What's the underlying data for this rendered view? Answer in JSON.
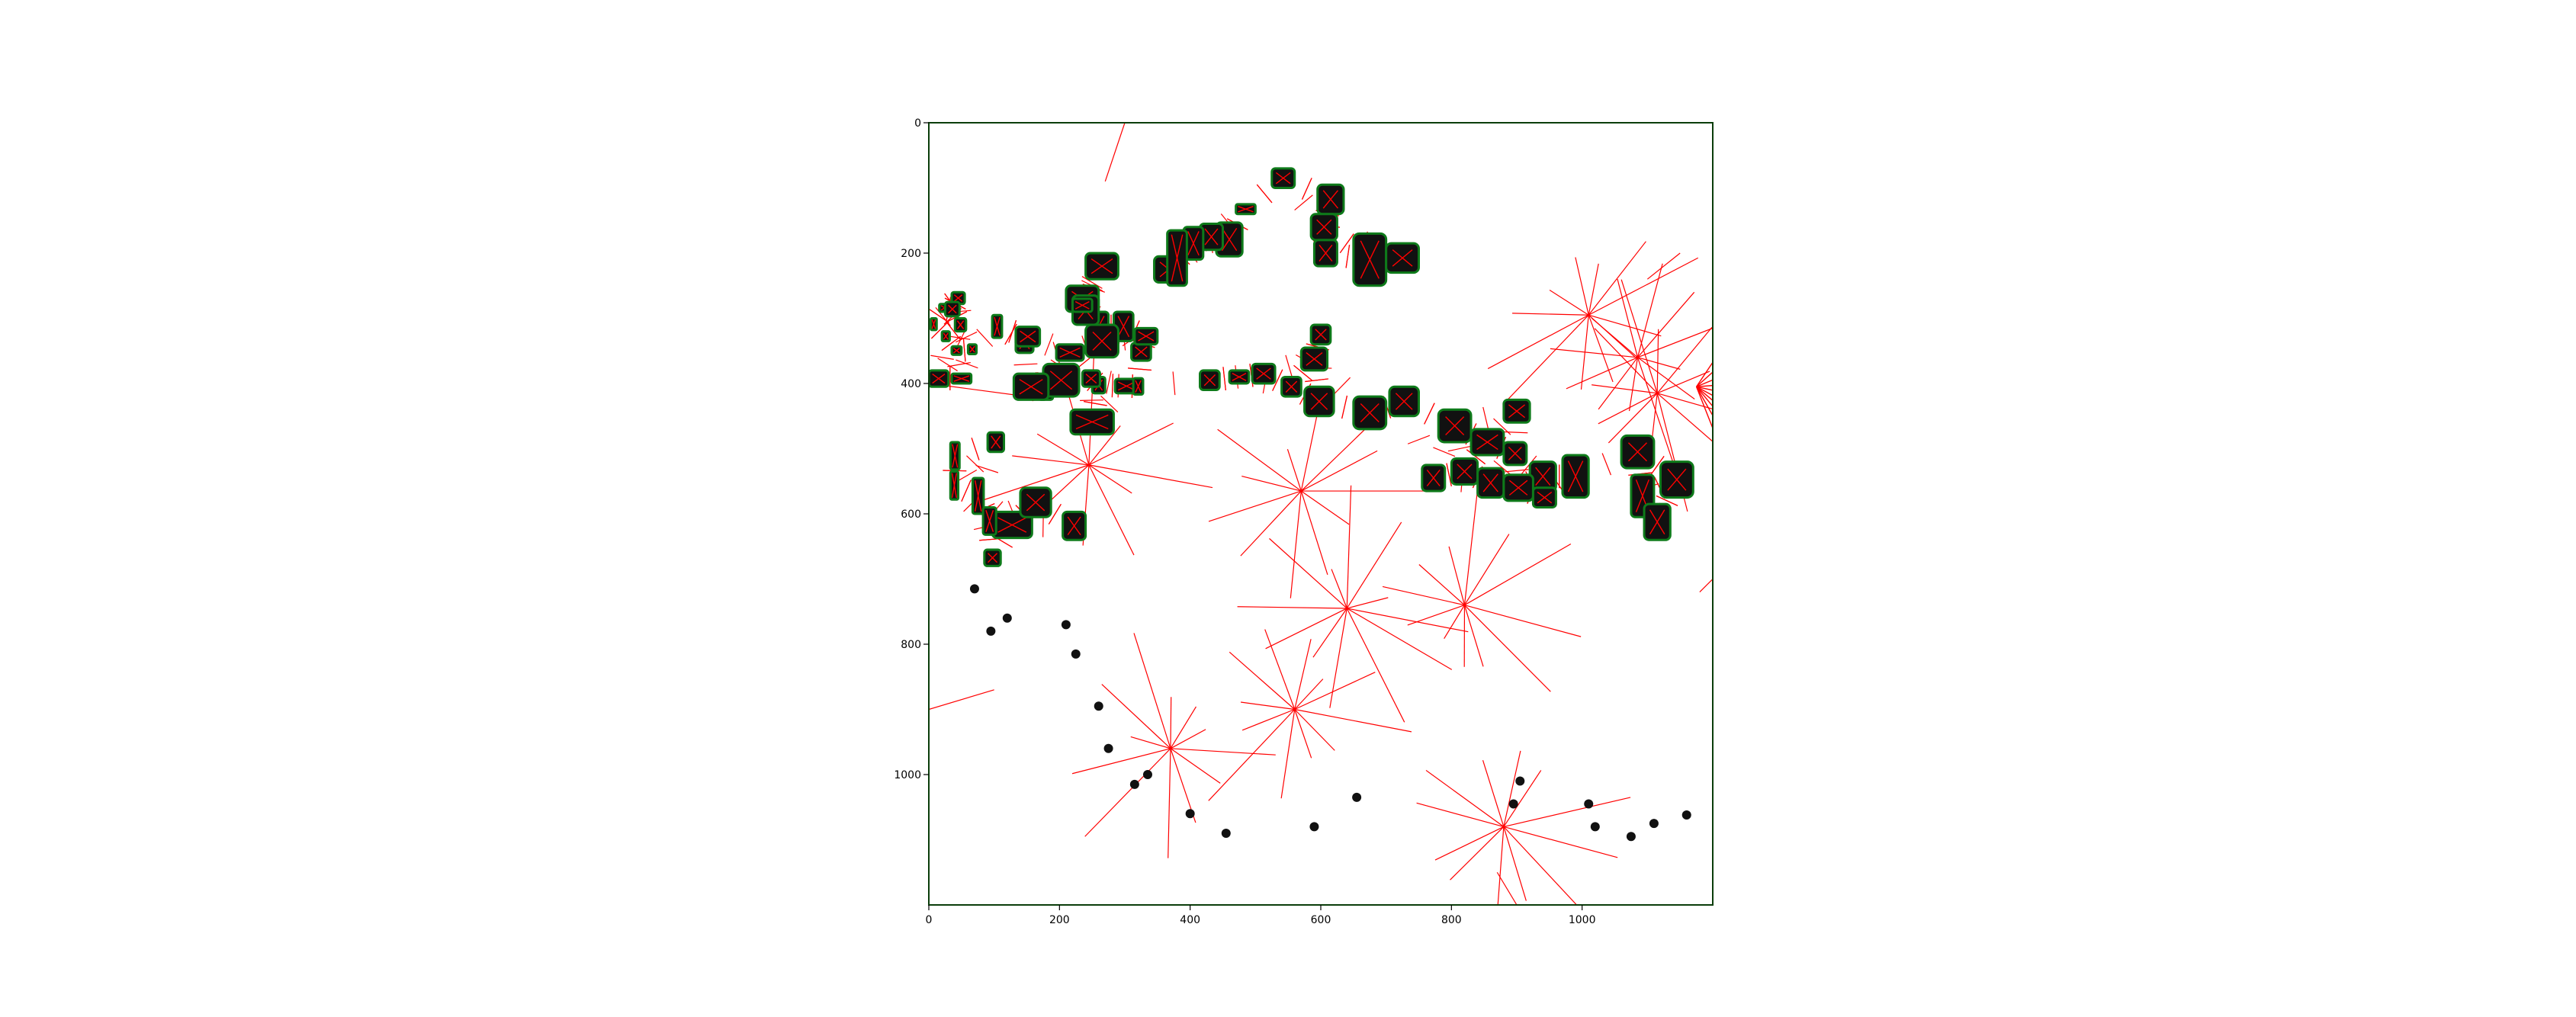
{
  "colors": {
    "background": "#ffffff",
    "frame": "#0b3d0b",
    "obstacle_fill": "#111111",
    "obstacle_outline": "#0e7a1a",
    "voronoi": "#ff0000",
    "tick": "#000000"
  },
  "chart_data": {
    "type": "scatter",
    "title": "",
    "xlabel": "",
    "ylabel": "",
    "xlim": [
      0,
      1200
    ],
    "ylim": [
      1200,
      0
    ],
    "y_axis_inverted": true,
    "aspect": "equal",
    "grid": false,
    "legend": "none",
    "x_ticks": [
      0,
      200,
      400,
      600,
      800,
      1000
    ],
    "x_tick_labels": [
      "0",
      "200",
      "400",
      "600",
      "800",
      "1000"
    ],
    "y_ticks": [
      0,
      200,
      400,
      600,
      800,
      1000
    ],
    "y_tick_labels": [
      "0",
      "200",
      "400",
      "600",
      "800",
      "1000"
    ],
    "obstacle_style": "dark fill with green outline, red medial cross inside",
    "obstacles": [
      [
        90,
        115,
        475,
        505
      ],
      [
        97,
        158,
        597,
        637
      ],
      [
        67,
        84,
        545,
        600
      ],
      [
        33,
        45,
        535,
        578
      ],
      [
        33,
        47,
        490,
        532
      ],
      [
        205,
        240,
        597,
        640
      ],
      [
        140,
        187,
        560,
        605
      ],
      [
        83,
        103,
        590,
        632
      ],
      [
        85,
        110,
        655,
        680
      ],
      [
        217,
        283,
        440,
        478
      ],
      [
        168,
        190,
        405,
        425
      ],
      [
        195,
        237,
        340,
        365
      ],
      [
        245,
        275,
        290,
        335
      ],
      [
        283,
        313,
        290,
        335
      ],
      [
        97,
        112,
        295,
        330
      ],
      [
        35,
        55,
        260,
        278
      ],
      [
        16,
        33,
        278,
        290
      ],
      [
        25,
        47,
        275,
        297
      ],
      [
        40,
        57,
        300,
        320
      ],
      [
        3,
        12,
        300,
        318
      ],
      [
        20,
        32,
        320,
        335
      ],
      [
        35,
        50,
        343,
        356
      ],
      [
        60,
        73,
        340,
        355
      ],
      [
        135,
        165,
        390,
        420
      ],
      [
        175,
        200,
        385,
        405
      ],
      [
        175,
        230,
        370,
        420
      ],
      [
        250,
        270,
        390,
        415
      ],
      [
        285,
        320,
        393,
        415
      ],
      [
        313,
        328,
        392,
        417
      ],
      [
        0,
        30,
        380,
        405
      ],
      [
        35,
        65,
        385,
        400
      ],
      [
        240,
        290,
        310,
        360
      ],
      [
        310,
        340,
        338,
        365
      ],
      [
        315,
        350,
        315,
        340
      ],
      [
        210,
        260,
        250,
        290
      ],
      [
        235,
        262,
        380,
        405
      ],
      [
        133,
        160,
        320,
        353
      ],
      [
        130,
        183,
        385,
        425
      ],
      [
        220,
        260,
        265,
        310
      ],
      [
        220,
        250,
        270,
        290
      ],
      [
        133,
        170,
        313,
        343
      ],
      [
        240,
        290,
        200,
        240
      ],
      [
        345,
        390,
        205,
        245
      ],
      [
        440,
        480,
        153,
        205
      ],
      [
        415,
        450,
        155,
        195
      ],
      [
        390,
        420,
        160,
        210
      ],
      [
        365,
        395,
        165,
        250
      ],
      [
        470,
        500,
        125,
        140
      ],
      [
        525,
        560,
        70,
        100
      ],
      [
        595,
        635,
        95,
        140
      ],
      [
        585,
        625,
        140,
        180
      ],
      [
        590,
        625,
        180,
        220
      ],
      [
        650,
        700,
        170,
        250
      ],
      [
        700,
        750,
        185,
        230
      ],
      [
        585,
        615,
        310,
        340
      ],
      [
        570,
        610,
        345,
        380
      ],
      [
        415,
        445,
        380,
        410
      ],
      [
        460,
        490,
        380,
        400
      ],
      [
        495,
        530,
        370,
        400
      ],
      [
        540,
        570,
        390,
        420
      ],
      [
        575,
        620,
        405,
        450
      ],
      [
        650,
        700,
        420,
        470
      ],
      [
        705,
        750,
        405,
        450
      ],
      [
        780,
        830,
        440,
        490
      ],
      [
        880,
        920,
        425,
        460
      ],
      [
        830,
        880,
        470,
        510
      ],
      [
        880,
        915,
        490,
        525
      ],
      [
        920,
        960,
        520,
        565
      ],
      [
        755,
        790,
        525,
        565
      ],
      [
        800,
        840,
        515,
        555
      ],
      [
        840,
        880,
        530,
        575
      ],
      [
        880,
        925,
        540,
        580
      ],
      [
        925,
        960,
        560,
        590
      ],
      [
        970,
        1010,
        510,
        575
      ],
      [
        1060,
        1110,
        480,
        530
      ],
      [
        1075,
        1110,
        540,
        605
      ],
      [
        1095,
        1135,
        585,
        640
      ],
      [
        1120,
        1170,
        520,
        575
      ]
    ],
    "markers": [
      [
        70,
        715
      ],
      [
        95,
        780
      ],
      [
        120,
        760
      ],
      [
        210,
        770
      ],
      [
        225,
        815
      ],
      [
        260,
        895
      ],
      [
        275,
        960
      ],
      [
        315,
        1015
      ],
      [
        335,
        1000
      ],
      [
        400,
        1060
      ],
      [
        455,
        1090
      ],
      [
        590,
        1080
      ],
      [
        655,
        1035
      ],
      [
        895,
        1045
      ],
      [
        905,
        1010
      ],
      [
        1010,
        1045
      ],
      [
        1020,
        1080
      ],
      [
        1075,
        1095
      ],
      [
        1110,
        1075
      ],
      [
        1160,
        1062
      ]
    ],
    "voronoi_hubs": [
      [
        570,
        565
      ],
      [
        1115,
        415
      ],
      [
        1085,
        360
      ],
      [
        1010,
        295
      ],
      [
        820,
        740
      ],
      [
        640,
        745
      ],
      [
        880,
        1080
      ],
      [
        560,
        900
      ],
      [
        370,
        960
      ],
      [
        245,
        525
      ]
    ],
    "fan_lines": {
      "origin": [
        1175,
        405
      ],
      "targets": [
        [
          1215,
          345
        ],
        [
          1225,
          360
        ],
        [
          1235,
          380
        ],
        [
          1240,
          400
        ],
        [
          1245,
          420
        ],
        [
          1250,
          445
        ],
        [
          1252,
          470
        ],
        [
          1250,
          495
        ],
        [
          1240,
          520
        ],
        [
          1228,
          540
        ]
      ]
    }
  }
}
